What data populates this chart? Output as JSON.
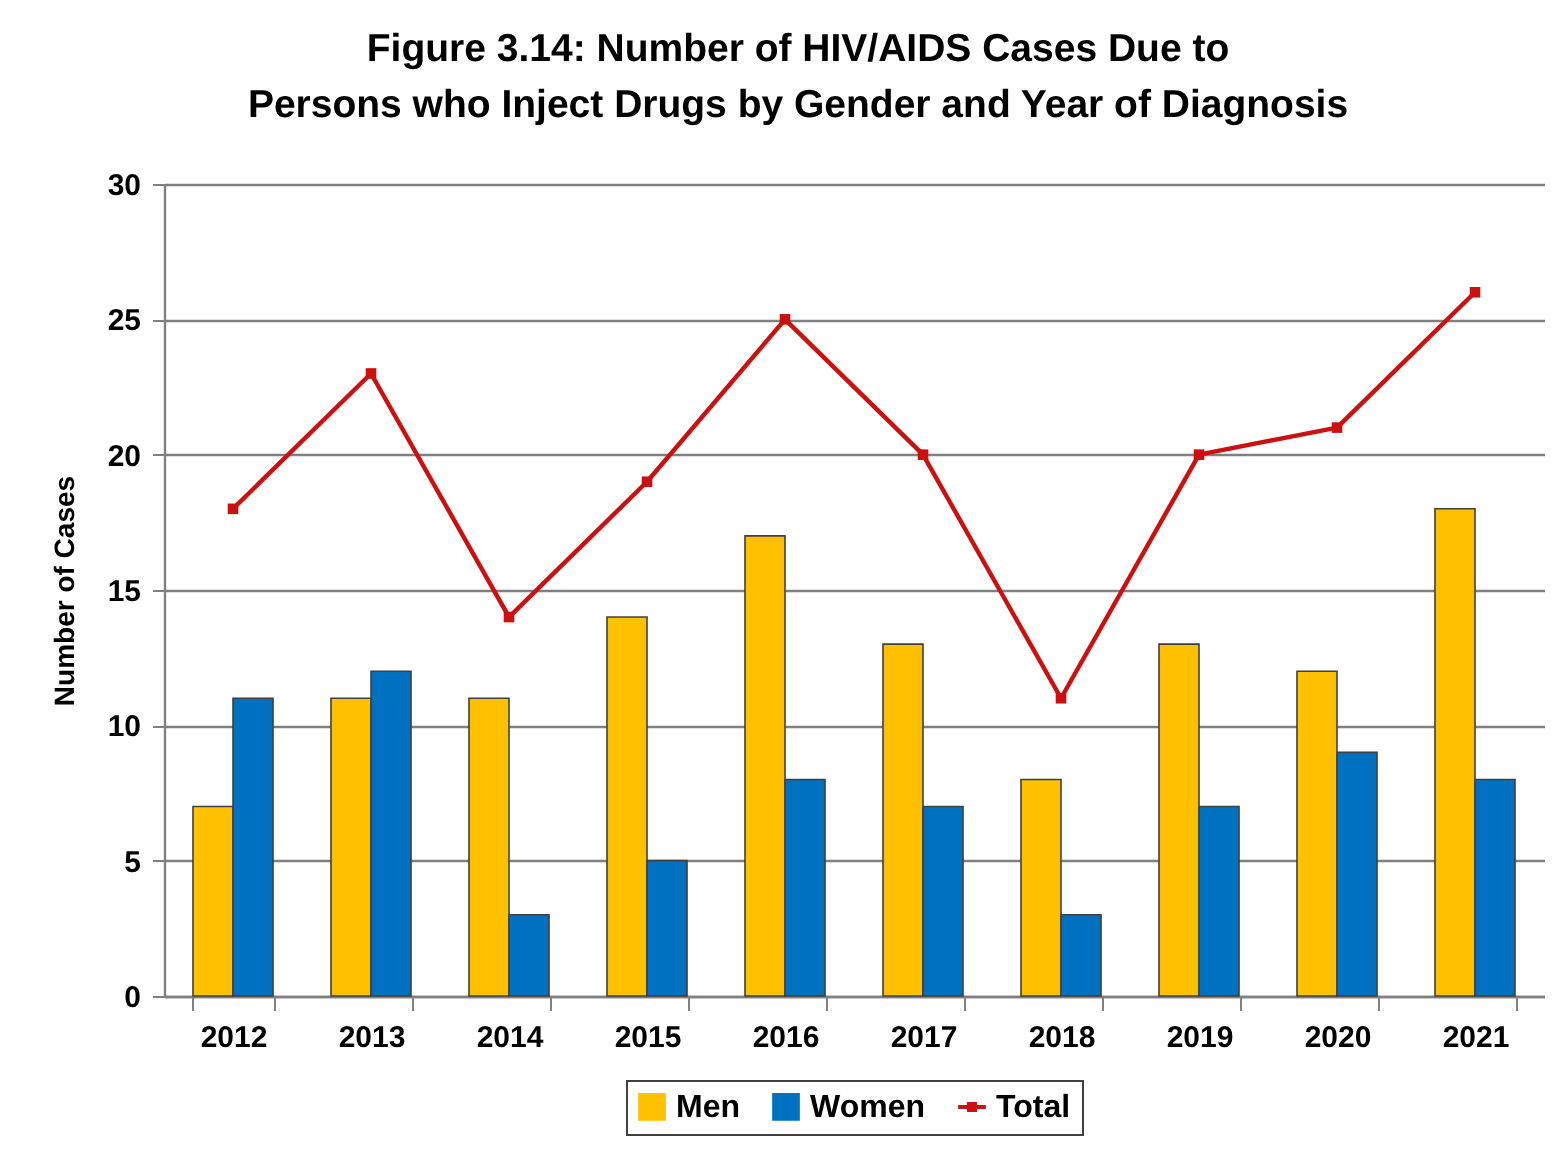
{
  "chart_data": {
    "type": "bar",
    "title": "Figure 3.14: Number of HIV/AIDS Cases Due to\nPersons who Inject Drugs by Gender and Year of Diagnosis",
    "ylabel": "Number of Cases",
    "categories": [
      "2012",
      "2013",
      "2014",
      "2015",
      "2016",
      "2017",
      "2018",
      "2019",
      "2020",
      "2021"
    ],
    "series": [
      {
        "name": "Men",
        "color": "#ffc000",
        "values": [
          7,
          11,
          11,
          14,
          17,
          13,
          8,
          13,
          12,
          18
        ]
      },
      {
        "name": "Women",
        "color": "#0070c0",
        "values": [
          11,
          12,
          3,
          5,
          8,
          7,
          3,
          7,
          9,
          8
        ]
      },
      {
        "name": "Total",
        "type": "line",
        "color": "#cc1010",
        "values": [
          18,
          23,
          14,
          19,
          25,
          20,
          11,
          20,
          21,
          26
        ]
      }
    ],
    "marker": "square",
    "ylim": [
      0,
      30
    ],
    "yticks": [
      0,
      5,
      10,
      15,
      20,
      25,
      30
    ],
    "grid": "y",
    "legend": "bottom"
  }
}
